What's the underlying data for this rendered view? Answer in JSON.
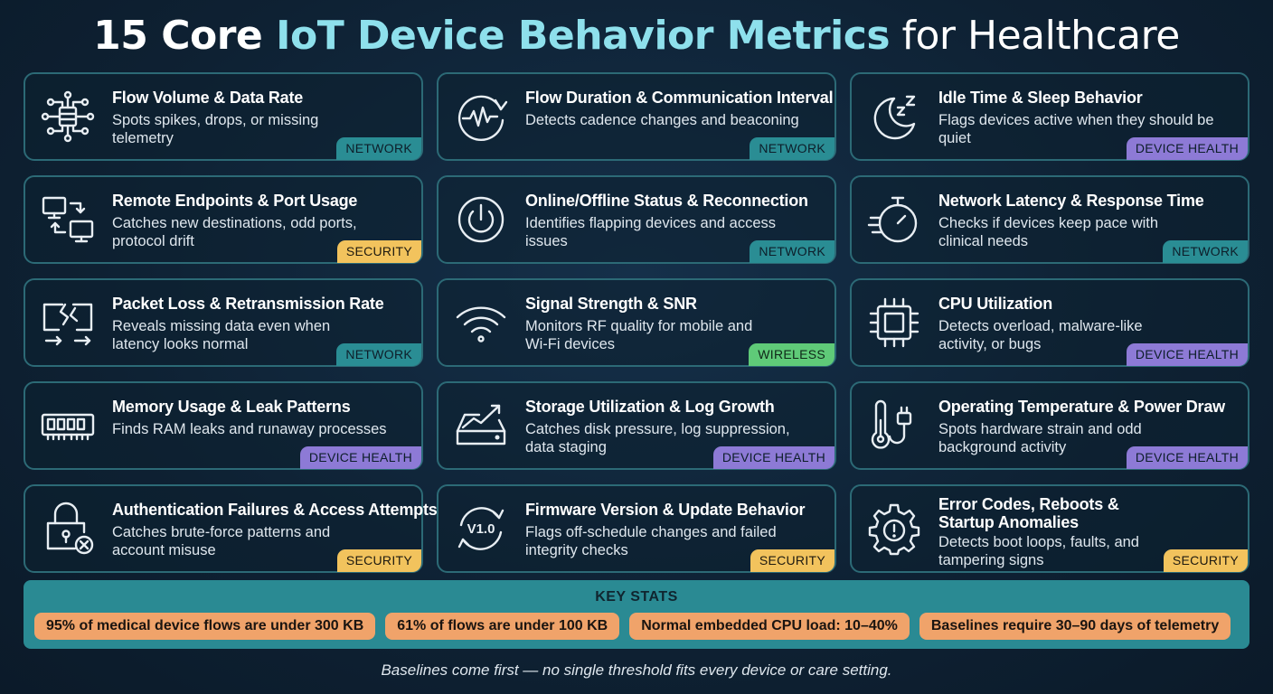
{
  "title": {
    "part1": "15 Core ",
    "highlight": "IoT Device Behavior Metrics",
    "part2": " for Healthcare"
  },
  "metrics": [
    {
      "title": "Flow Volume & Data Rate",
      "desc": "Spots spikes, drops, or missing telemetry",
      "tag": "NETWORK",
      "icon": "network-hub-icon"
    },
    {
      "title": "Flow Duration & Communication Interval",
      "desc": "Detects cadence changes and beaconing",
      "tag": "NETWORK",
      "icon": "pulse-clock-icon"
    },
    {
      "title": "Idle Time & Sleep Behavior",
      "desc": "Flags devices active when they should be quiet",
      "tag": "DEVICE HEALTH",
      "icon": "moon-sleep-icon"
    },
    {
      "title": "Remote Endpoints & Port Usage",
      "desc": "Catches new destinations, odd ports, protocol drift",
      "tag": "SECURITY",
      "icon": "computers-exchange-icon"
    },
    {
      "title": "Online/Offline Status & Reconnection",
      "desc": "Identifies flapping devices and access issues",
      "tag": "NETWORK",
      "icon": "power-icon"
    },
    {
      "title": "Network Latency & Response Time",
      "desc": "Checks if devices keep pace with clinical needs",
      "tag": "NETWORK",
      "icon": "stopwatch-icon"
    },
    {
      "title": "Packet Loss & Retransmission Rate",
      "desc": "Reveals missing data even when latency looks normal",
      "tag": "NETWORK",
      "icon": "broken-link-icon"
    },
    {
      "title": "Signal Strength & SNR",
      "desc": "Monitors RF quality for mobile and Wi-Fi devices",
      "tag": "WIRELESS",
      "icon": "wifi-icon"
    },
    {
      "title": "CPU Utilization",
      "desc": "Detects overload, malware-like activity, or bugs",
      "tag": "DEVICE HEALTH",
      "icon": "cpu-chip-icon"
    },
    {
      "title": "Memory Usage & Leak Patterns",
      "desc": "Finds RAM leaks and runaway processes",
      "tag": "DEVICE HEALTH",
      "icon": "ram-module-icon"
    },
    {
      "title": "Storage Utilization & Log Growth",
      "desc": "Catches disk pressure, log suppression, data staging",
      "tag": "DEVICE HEALTH",
      "icon": "storage-trend-icon"
    },
    {
      "title": "Operating Temperature & Power Draw",
      "desc": "Spots hardware strain and odd background activity",
      "tag": "DEVICE HEALTH",
      "icon": "thermometer-plug-icon"
    },
    {
      "title": "Authentication Failures & Access Attempts",
      "desc": "Catches brute-force patterns and account misuse",
      "tag": "SECURITY",
      "icon": "lock-error-icon"
    },
    {
      "title": "Firmware Version & Update Behavior",
      "desc": "Flags off-schedule changes and failed integrity checks",
      "tag": "SECURITY",
      "icon": "firmware-update-icon"
    },
    {
      "title": "Error Codes, Reboots & Startup Anomalies",
      "desc": "Detects boot loops, faults, and tampering signs",
      "tag": "SECURITY",
      "icon": "gear-alert-icon"
    }
  ],
  "firmware_icon_text": "V1.0",
  "key_stats": {
    "heading": "KEY STATS",
    "items": [
      "95% of medical device flows are under 300 KB",
      "61% of flows are under 100 KB",
      "Normal embedded CPU load: 10–40%",
      "Baselines require 30–90 days of telemetry"
    ]
  },
  "footer": "Baselines come first — no single threshold fits every device or care setting.",
  "colors": {
    "background": "#0f2334",
    "accent_title": "#8ee0ec",
    "card_border": "#2c6a76",
    "network": "#2a8d94",
    "security": "#f2c35d",
    "device_health": "#8d7ad6",
    "wireless": "#5fca78",
    "stats_panel": "#2a8a93",
    "stat_pill": "#f0a36a"
  }
}
